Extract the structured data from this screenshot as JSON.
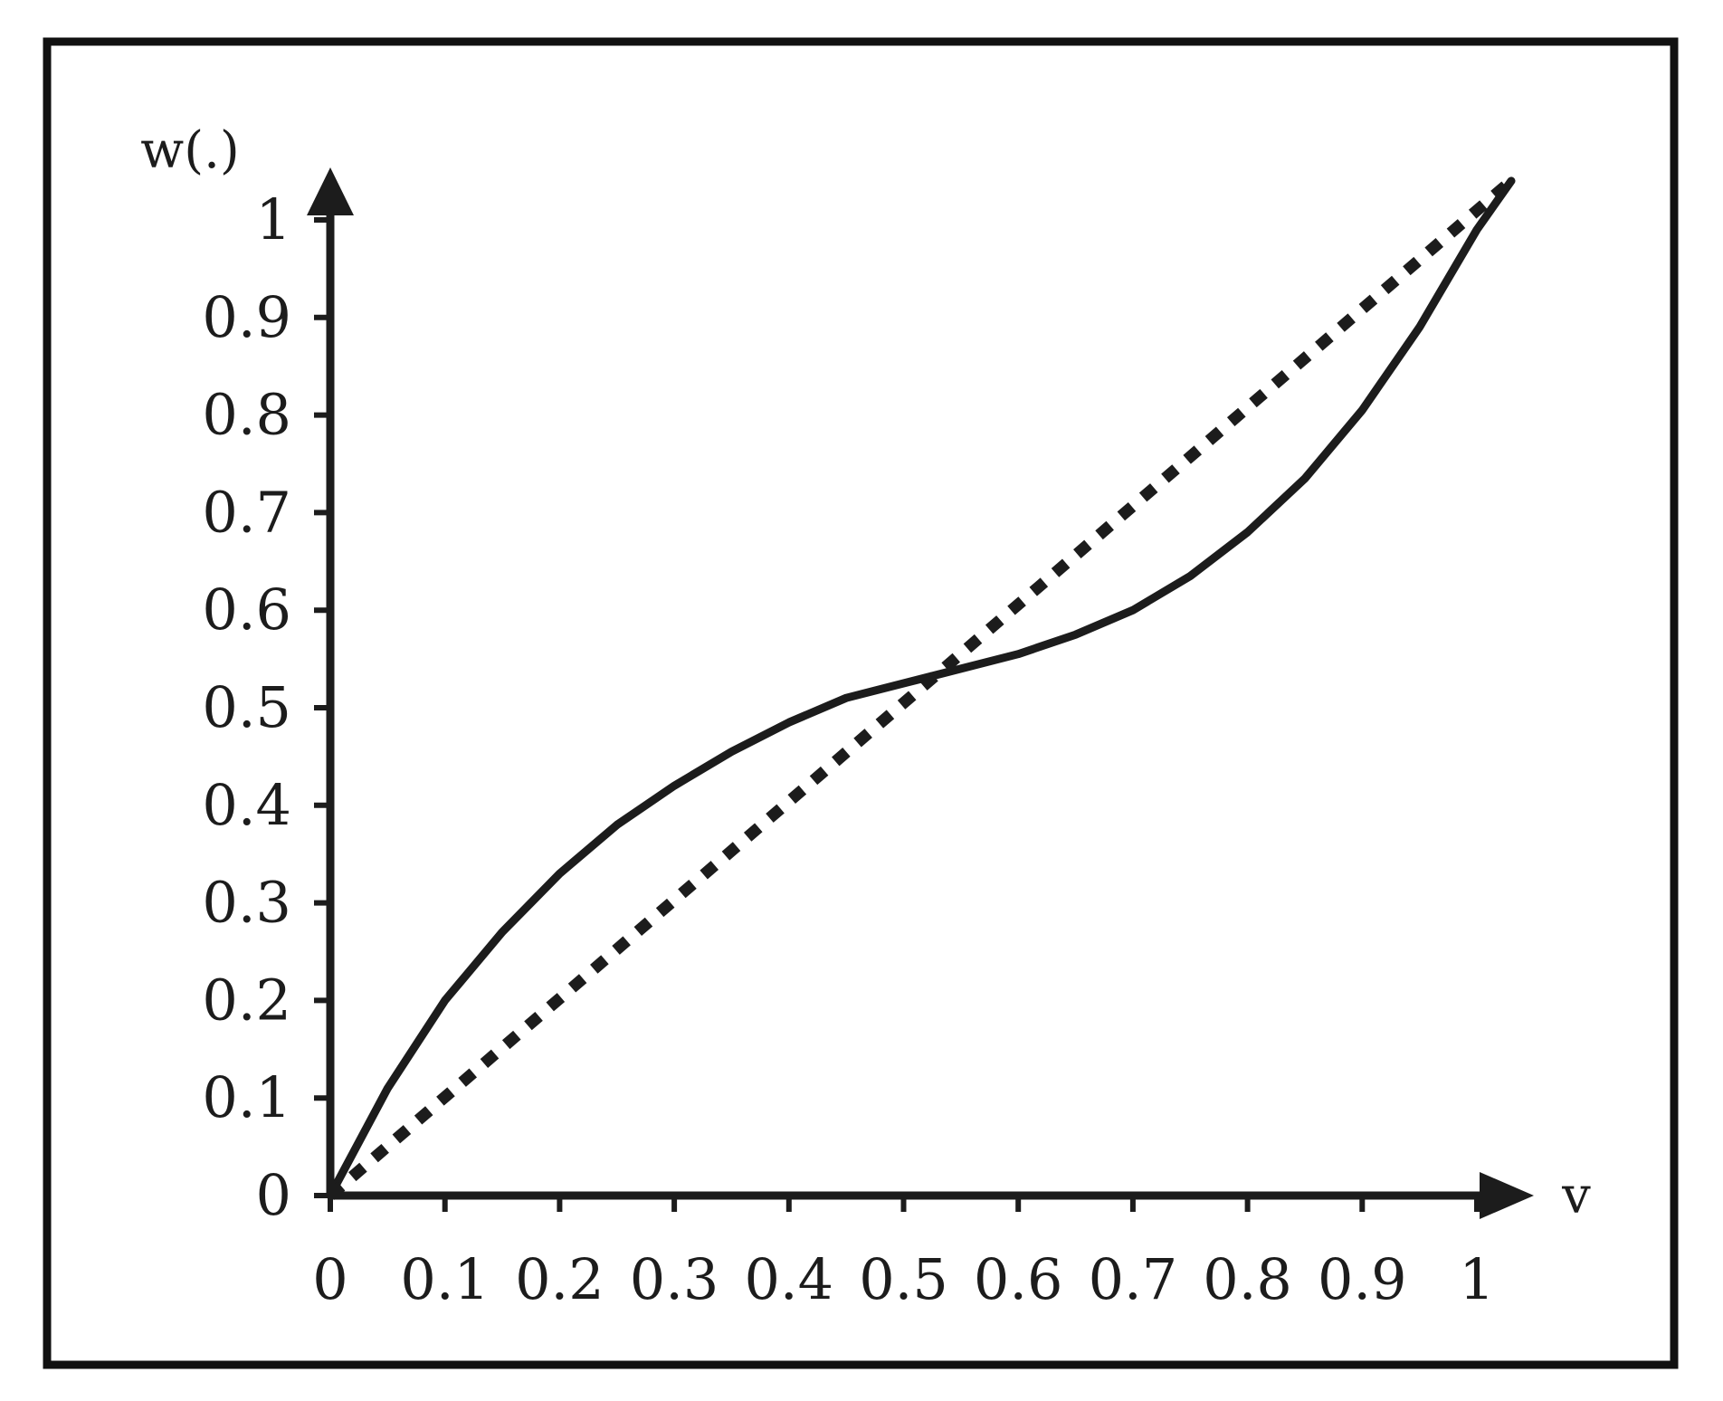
{
  "chart_data": {
    "type": "line",
    "title": "",
    "xlabel": "v",
    "ylabel": "w(.)",
    "xlim": [
      0,
      1
    ],
    "ylim": [
      0,
      1
    ],
    "grid": false,
    "x_ticks": [
      "0",
      "0.1",
      "0.2",
      "0.3",
      "0.4",
      "0.5",
      "0.6",
      "0.7",
      "0.8",
      "0.9",
      "1"
    ],
    "y_ticks": [
      "0",
      "0.1",
      "0.2",
      "0.3",
      "0.4",
      "0.5",
      "0.6",
      "0.7",
      "0.8",
      "0.9",
      "1"
    ],
    "colors": {
      "ink": "#1c1c1c",
      "frame": "#111111",
      "background": "#ffffff"
    },
    "series": [
      {
        "style": "solid",
        "x": [
          0,
          0.05,
          0.1,
          0.15,
          0.2,
          0.25,
          0.3,
          0.35,
          0.4,
          0.45,
          0.5,
          0.55,
          0.6,
          0.65,
          0.7,
          0.75,
          0.8,
          0.85,
          0.9,
          0.95,
          1.0,
          1.03
        ],
        "y": [
          0.0,
          0.11,
          0.2,
          0.27,
          0.33,
          0.38,
          0.42,
          0.455,
          0.485,
          0.51,
          0.525,
          0.54,
          0.555,
          0.575,
          0.6,
          0.635,
          0.68,
          0.735,
          0.805,
          0.89,
          0.99,
          1.04
        ]
      },
      {
        "style": "dotted",
        "x": [
          0,
          1.03
        ],
        "y": [
          0,
          1.04
        ]
      }
    ]
  }
}
